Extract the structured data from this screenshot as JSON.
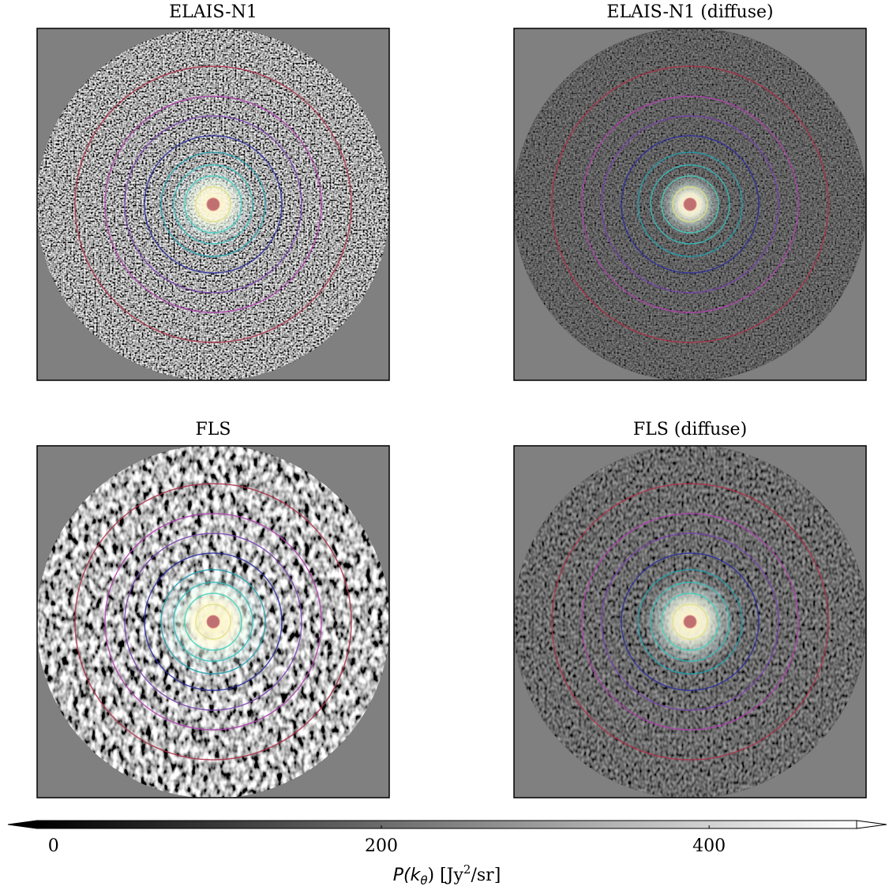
{
  "chart_data": {
    "type": "image",
    "panels": [
      {
        "title": "ELAIS-N1"
      },
      {
        "title": "ELAIS-N1 (diffuse)"
      },
      {
        "title": "FLS"
      },
      {
        "title": "FLS (diffuse)"
      }
    ],
    "colorbar": {
      "label_parts": [
        "P(k",
        "θ",
        ") [Jy",
        "2",
        "/sr]"
      ],
      "clim": [
        -10,
        490
      ],
      "ticks": [
        0,
        200,
        400
      ],
      "extend": "both",
      "colors": [
        "#000000",
        "#ffffff"
      ]
    }
  }
}
